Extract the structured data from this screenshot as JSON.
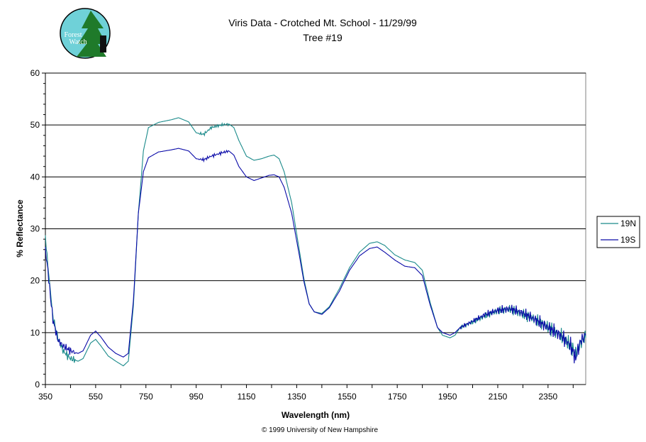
{
  "logo": {
    "text_line1": "Forest",
    "text_line2": "Watch"
  },
  "copyright": "© 1999 University of New Hampshire",
  "colors": {
    "series_19N": "#1a8a8a",
    "series_19S": "#0a0aa8",
    "gridline": "#000000",
    "plot_background": "#ffffff"
  },
  "chart_data": {
    "type": "line",
    "title": "Viris Data - Crotched Mt. School - 11/29/99",
    "subtitle": "Tree #19",
    "xlabel": "Wavelength (nm)",
    "ylabel": "% Reflectance",
    "xlim": [
      350,
      2500
    ],
    "ylim": [
      0,
      60
    ],
    "xticks": [
      350,
      550,
      750,
      950,
      1150,
      1350,
      1550,
      1750,
      1950,
      2150,
      2350
    ],
    "yticks": [
      0,
      10,
      20,
      30,
      40,
      50,
      60
    ],
    "grid": "horizontal major gridlines",
    "legend_position": "right",
    "series": [
      {
        "name": "19N",
        "points": [
          [
            350,
            28.5
          ],
          [
            360,
            23
          ],
          [
            370,
            18
          ],
          [
            380,
            13
          ],
          [
            400,
            9
          ],
          [
            420,
            6.5
          ],
          [
            450,
            5
          ],
          [
            480,
            4.5
          ],
          [
            500,
            5
          ],
          [
            530,
            8
          ],
          [
            550,
            8.7
          ],
          [
            570,
            7.5
          ],
          [
            600,
            5.5
          ],
          [
            630,
            4.5
          ],
          [
            660,
            3.6
          ],
          [
            680,
            4.5
          ],
          [
            700,
            15
          ],
          [
            720,
            33
          ],
          [
            740,
            45
          ],
          [
            760,
            49.5
          ],
          [
            800,
            50.5
          ],
          [
            850,
            51
          ],
          [
            880,
            51.4
          ],
          [
            920,
            50.6
          ],
          [
            950,
            48.5
          ],
          [
            980,
            48.2
          ],
          [
            1010,
            49.5
          ],
          [
            1050,
            50
          ],
          [
            1080,
            50.2
          ],
          [
            1100,
            49.5
          ],
          [
            1120,
            47
          ],
          [
            1150,
            44
          ],
          [
            1180,
            43.2
          ],
          [
            1210,
            43.5
          ],
          [
            1240,
            44
          ],
          [
            1260,
            44.2
          ],
          [
            1280,
            43.5
          ],
          [
            1300,
            41
          ],
          [
            1330,
            35
          ],
          [
            1360,
            26
          ],
          [
            1380,
            20
          ],
          [
            1400,
            15.5
          ],
          [
            1420,
            14
          ],
          [
            1450,
            13.7
          ],
          [
            1480,
            15
          ],
          [
            1520,
            18.5
          ],
          [
            1560,
            22.5
          ],
          [
            1600,
            25.5
          ],
          [
            1640,
            27.2
          ],
          [
            1670,
            27.5
          ],
          [
            1700,
            26.8
          ],
          [
            1740,
            25
          ],
          [
            1780,
            24
          ],
          [
            1820,
            23.5
          ],
          [
            1850,
            22
          ],
          [
            1880,
            16
          ],
          [
            1910,
            11
          ],
          [
            1930,
            9.5
          ],
          [
            1960,
            9
          ],
          [
            1980,
            9.5
          ],
          [
            2000,
            11
          ],
          [
            2050,
            12
          ],
          [
            2100,
            13.2
          ],
          [
            2150,
            14.2
          ],
          [
            2200,
            14.5
          ],
          [
            2250,
            13.5
          ],
          [
            2300,
            12.5
          ],
          [
            2350,
            11
          ],
          [
            2400,
            9.5
          ],
          [
            2440,
            7.5
          ],
          [
            2460,
            6
          ],
          [
            2480,
            8
          ],
          [
            2500,
            9
          ]
        ]
      },
      {
        "name": "19S",
        "points": [
          [
            350,
            26
          ],
          [
            360,
            22
          ],
          [
            370,
            17
          ],
          [
            380,
            12.5
          ],
          [
            400,
            8.5
          ],
          [
            420,
            7.5
          ],
          [
            450,
            6.5
          ],
          [
            480,
            6
          ],
          [
            500,
            6.5
          ],
          [
            530,
            9.5
          ],
          [
            550,
            10.3
          ],
          [
            570,
            9.2
          ],
          [
            600,
            7.2
          ],
          [
            630,
            6
          ],
          [
            660,
            5.3
          ],
          [
            680,
            6
          ],
          [
            700,
            16
          ],
          [
            720,
            33
          ],
          [
            740,
            41
          ],
          [
            760,
            43.7
          ],
          [
            800,
            44.8
          ],
          [
            850,
            45.2
          ],
          [
            880,
            45.5
          ],
          [
            920,
            45
          ],
          [
            950,
            43.5
          ],
          [
            980,
            43.3
          ],
          [
            1010,
            44
          ],
          [
            1050,
            44.6
          ],
          [
            1080,
            45
          ],
          [
            1100,
            44.2
          ],
          [
            1120,
            42
          ],
          [
            1150,
            40
          ],
          [
            1180,
            39.3
          ],
          [
            1210,
            39.8
          ],
          [
            1240,
            40.3
          ],
          [
            1260,
            40.4
          ],
          [
            1280,
            40
          ],
          [
            1300,
            38
          ],
          [
            1330,
            33
          ],
          [
            1360,
            25
          ],
          [
            1380,
            19.5
          ],
          [
            1400,
            15.5
          ],
          [
            1420,
            14
          ],
          [
            1450,
            13.5
          ],
          [
            1480,
            14.8
          ],
          [
            1520,
            18
          ],
          [
            1560,
            22
          ],
          [
            1600,
            24.8
          ],
          [
            1640,
            26.2
          ],
          [
            1670,
            26.5
          ],
          [
            1700,
            25.5
          ],
          [
            1740,
            24
          ],
          [
            1780,
            22.8
          ],
          [
            1820,
            22.5
          ],
          [
            1850,
            21
          ],
          [
            1880,
            15.5
          ],
          [
            1910,
            11
          ],
          [
            1930,
            10
          ],
          [
            1960,
            9.5
          ],
          [
            1980,
            10
          ],
          [
            2000,
            11
          ],
          [
            2050,
            12.2
          ],
          [
            2100,
            13.5
          ],
          [
            2150,
            14.3
          ],
          [
            2200,
            14.6
          ],
          [
            2250,
            13.8
          ],
          [
            2300,
            12.5
          ],
          [
            2350,
            11
          ],
          [
            2400,
            9.5
          ],
          [
            2440,
            7.5
          ],
          [
            2460,
            5
          ],
          [
            2480,
            8.5
          ],
          [
            2500,
            9.5
          ]
        ]
      }
    ]
  }
}
